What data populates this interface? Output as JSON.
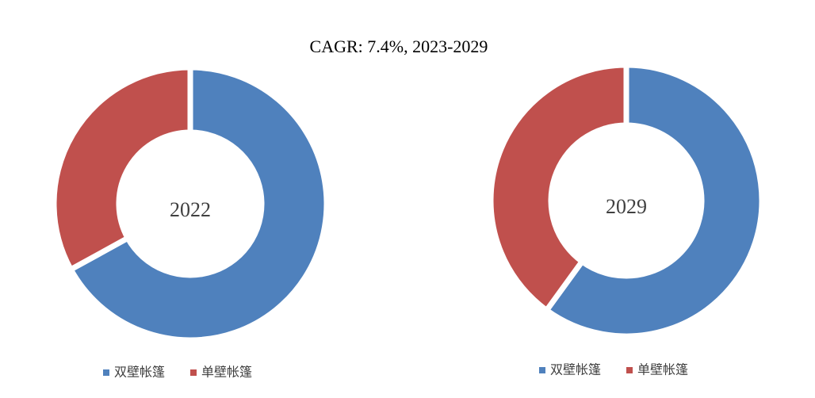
{
  "title": "CAGR:  7.4%, 2023-2029",
  "chart_data": [
    {
      "type": "pie",
      "center_label": "2022",
      "categories": [
        "双壁帐篷",
        "单壁帐篷"
      ],
      "values": [
        67,
        33
      ],
      "colors": [
        "#4f81bd",
        "#c0504d"
      ]
    },
    {
      "type": "pie",
      "center_label": "2029",
      "categories": [
        "双壁帐篷",
        "单壁帐篷"
      ],
      "values": [
        60,
        40
      ],
      "colors": [
        "#4f81bd",
        "#c0504d"
      ]
    }
  ]
}
